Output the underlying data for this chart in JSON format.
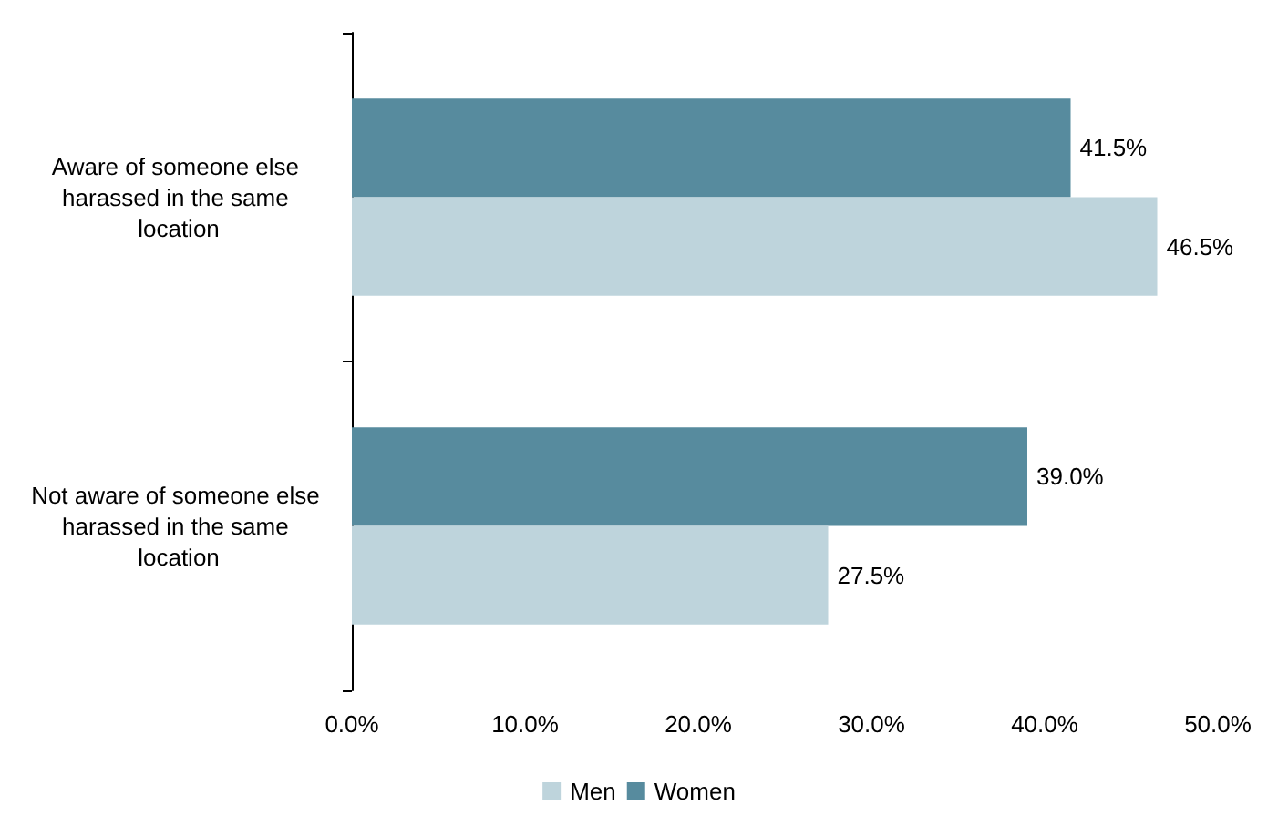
{
  "chart_data": {
    "type": "bar",
    "orientation": "horizontal",
    "categories": [
      "Aware of someone else harassed in the same location",
      "Not aware of someone else harassed in the same location"
    ],
    "series": [
      {
        "name": "Men",
        "color": "#bed4dc",
        "values": [
          46.5,
          27.5
        ],
        "value_labels": [
          "46.5%",
          "27.5%"
        ]
      },
      {
        "name": "Women",
        "color": "#578b9e",
        "values": [
          41.5,
          39.0
        ],
        "value_labels": [
          "41.5%",
          "39.0%"
        ]
      }
    ],
    "xlim": [
      0,
      50
    ],
    "xticks": [
      {
        "value": 0,
        "label": "0.0%"
      },
      {
        "value": 10,
        "label": "10.0%"
      },
      {
        "value": 20,
        "label": "20.0%"
      },
      {
        "value": 30,
        "label": "30.0%"
      },
      {
        "value": 40,
        "label": "40.0%"
      },
      {
        "value": 50,
        "label": "50.0%"
      }
    ],
    "grid": false,
    "legend": "bottom"
  }
}
